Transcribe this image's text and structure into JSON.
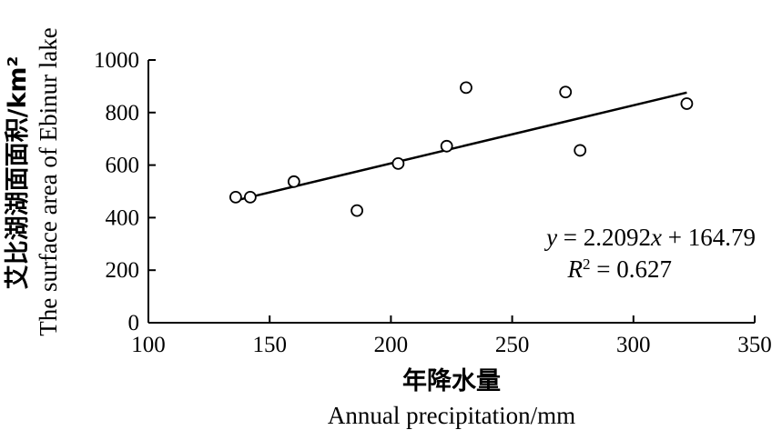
{
  "chart_data": {
    "type": "scatter",
    "title": "",
    "xlabel": "年降水量",
    "xlabel_en": "Annual precipitation/mm",
    "ylabel": "艾比湖湖面面积/km²",
    "ylabel_en": "The surface area of Ebinur lake",
    "xlim": [
      100,
      350
    ],
    "ylim": [
      0,
      1000
    ],
    "x_ticks": [
      100,
      150,
      200,
      250,
      300,
      350
    ],
    "y_ticks": [
      0,
      200,
      400,
      600,
      800,
      1000
    ],
    "grid": false,
    "points": [
      {
        "x": 136,
        "y": 478
      },
      {
        "x": 142,
        "y": 478
      },
      {
        "x": 160,
        "y": 537
      },
      {
        "x": 186,
        "y": 427
      },
      {
        "x": 203,
        "y": 606
      },
      {
        "x": 223,
        "y": 672
      },
      {
        "x": 231,
        "y": 895
      },
      {
        "x": 272,
        "y": 878
      },
      {
        "x": 278,
        "y": 656
      },
      {
        "x": 322,
        "y": 834
      }
    ],
    "trendline": {
      "slope": 2.2092,
      "intercept": 164.79,
      "x_range": [
        136,
        322
      ],
      "equation_y": "y",
      "equation_rhs": " = 2.2092",
      "equation_x": "x",
      "equation_tail": " + 164.79",
      "r2_label": "R",
      "r2_exp": "2",
      "r2_value": " = 0.627"
    }
  }
}
